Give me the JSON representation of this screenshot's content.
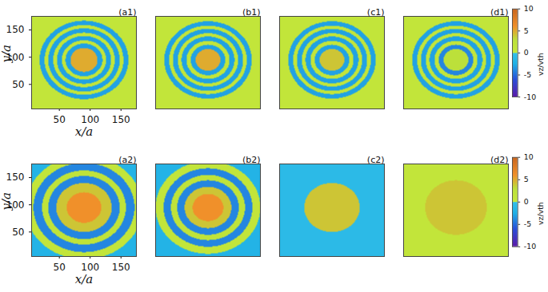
{
  "chart_data": {
    "type": "heatmap",
    "colorbar": {
      "label": "vz/vth",
      "range": [
        -10,
        10
      ],
      "ticks": [
        -10,
        -5,
        0,
        5,
        10
      ]
    },
    "panels": [
      {
        "title": "(a1)",
        "xlabel": "x/a",
        "ylabel": "y/a",
        "xlim": [
          5,
          175
        ],
        "ylim": [
          5,
          175
        ],
        "xticks": [
          50,
          100,
          150
        ],
        "yticks": [
          50,
          100,
          150
        ],
        "center": [
          90,
          95
        ],
        "rings": [
          {
            "r": [
              0,
              22
            ],
            "value": 5
          },
          {
            "r": [
              22,
              30
            ],
            "value": -3
          },
          {
            "r": [
              30,
              36
            ],
            "value": 1
          },
          {
            "r": [
              36,
              44
            ],
            "value": -3
          },
          {
            "r": [
              44,
              50
            ],
            "value": 1
          },
          {
            "r": [
              50,
              58
            ],
            "value": -3
          },
          {
            "r": [
              58,
              64
            ],
            "value": 1
          },
          {
            "r": [
              64,
              72
            ],
            "value": -3
          },
          {
            "r": [
              72,
              130
            ],
            "value": 1
          }
        ]
      },
      {
        "title": "(b1)",
        "tick_labels": false,
        "xlim": [
          5,
          175
        ],
        "ylim": [
          5,
          175
        ],
        "center": [
          90,
          95
        ],
        "rings": [
          {
            "r": [
              0,
              20
            ],
            "value": 5
          },
          {
            "r": [
              20,
              28
            ],
            "value": -3
          },
          {
            "r": [
              28,
              35
            ],
            "value": 1
          },
          {
            "r": [
              35,
              43
            ],
            "value": -3
          },
          {
            "r": [
              43,
              49
            ],
            "value": 1
          },
          {
            "r": [
              49,
              57
            ],
            "value": -3
          },
          {
            "r": [
              57,
              63
            ],
            "value": 1
          },
          {
            "r": [
              63,
              71
            ],
            "value": -3
          },
          {
            "r": [
              71,
              130
            ],
            "value": 1
          }
        ]
      },
      {
        "title": "(c1)",
        "tick_labels": false,
        "xlim": [
          5,
          175
        ],
        "ylim": [
          5,
          175
        ],
        "center": [
          90,
          95
        ],
        "rings": [
          {
            "r": [
              0,
              20
            ],
            "value": 4
          },
          {
            "r": [
              20,
              28
            ],
            "value": -3
          },
          {
            "r": [
              28,
              35
            ],
            "value": 1
          },
          {
            "r": [
              35,
              43
            ],
            "value": -3
          },
          {
            "r": [
              43,
              49
            ],
            "value": 1
          },
          {
            "r": [
              49,
              57
            ],
            "value": -3
          },
          {
            "r": [
              57,
              63
            ],
            "value": 1
          },
          {
            "r": [
              63,
              71
            ],
            "value": -3
          },
          {
            "r": [
              71,
              130
            ],
            "value": 1
          }
        ]
      },
      {
        "title": "(d1)",
        "tick_labels": false,
        "xlim": [
          5,
          175
        ],
        "ylim": [
          5,
          175
        ],
        "center": [
          90,
          95
        ],
        "rings": [
          {
            "r": [
              0,
              20
            ],
            "value": 3
          },
          {
            "r": [
              20,
              28
            ],
            "value": -4
          },
          {
            "r": [
              28,
              35
            ],
            "value": 1
          },
          {
            "r": [
              35,
              43
            ],
            "value": -3
          },
          {
            "r": [
              43,
              49
            ],
            "value": 1
          },
          {
            "r": [
              49,
              57
            ],
            "value": -3
          },
          {
            "r": [
              57,
              63
            ],
            "value": 1
          },
          {
            "r": [
              63,
              71
            ],
            "value": -3
          },
          {
            "r": [
              71,
              130
            ],
            "value": 1
          }
        ]
      },
      {
        "title": "(a2)",
        "xlabel": "x/a",
        "ylabel": "y/a",
        "xlim": [
          5,
          175
        ],
        "ylim": [
          5,
          175
        ],
        "xticks": [
          50,
          100,
          150
        ],
        "yticks": [
          50,
          100,
          150
        ],
        "center": [
          90,
          95
        ],
        "rings": [
          {
            "r": [
              0,
              28
            ],
            "value": 6
          },
          {
            "r": [
              28,
              45
            ],
            "value": 4
          },
          {
            "r": [
              45,
              58
            ],
            "value": -4
          },
          {
            "r": [
              58,
              68
            ],
            "value": 2
          },
          {
            "r": [
              68,
              82
            ],
            "value": -4
          },
          {
            "r": [
              82,
              95
            ],
            "value": 1
          },
          {
            "r": [
              95,
              130
            ],
            "value": -2
          }
        ]
      },
      {
        "title": "(b2)",
        "tick_labels": false,
        "xlim": [
          5,
          175
        ],
        "ylim": [
          5,
          175
        ],
        "center": [
          90,
          95
        ],
        "rings": [
          {
            "r": [
              0,
              25
            ],
            "value": 6
          },
          {
            "r": [
              25,
              38
            ],
            "value": 4
          },
          {
            "r": [
              38,
              50
            ],
            "value": -4
          },
          {
            "r": [
              50,
              60
            ],
            "value": 2
          },
          {
            "r": [
              60,
              72
            ],
            "value": -4
          },
          {
            "r": [
              72,
              85
            ],
            "value": 1
          },
          {
            "r": [
              85,
              130
            ],
            "value": -2
          }
        ]
      },
      {
        "title": "(c2)",
        "tick_labels": false,
        "xlim": [
          5,
          175
        ],
        "ylim": [
          5,
          175
        ],
        "center": [
          90,
          95
        ],
        "rings": [
          {
            "r": [
              0,
              45
            ],
            "value": 4
          },
          {
            "r": [
              45,
              130
            ],
            "value": -1
          }
        ]
      },
      {
        "title": "(d2)",
        "tick_labels": false,
        "xlim": [
          5,
          175
        ],
        "ylim": [
          5,
          175
        ],
        "center": [
          90,
          95
        ],
        "rings": [
          {
            "r": [
              0,
              50
            ],
            "value": 4
          },
          {
            "r": [
              50,
              130
            ],
            "value": 1
          }
        ]
      }
    ]
  }
}
